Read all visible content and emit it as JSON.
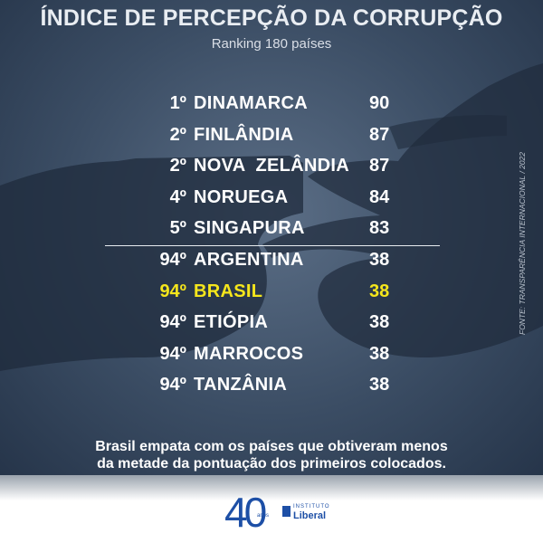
{
  "title": "ÍNDICE DE PERCEPÇÃO DA CORRUPÇÃO",
  "subtitle": "Ranking 180 países",
  "ranking": [
    {
      "rank": "1º",
      "country": "DINAMARCA",
      "score": "90",
      "highlight": false
    },
    {
      "rank": "2º",
      "country": "FINLÂNDIA",
      "score": "87",
      "highlight": false
    },
    {
      "rank": "2º",
      "country": "NOVA  ZELÂNDIA",
      "score": "87",
      "highlight": false
    },
    {
      "rank": "4º",
      "country": "NORUEGA",
      "score": "84",
      "highlight": false
    },
    {
      "rank": "5º",
      "country": "SINGAPURA",
      "score": "83",
      "highlight": false
    },
    {
      "rank": "94º",
      "country": "ARGENTINA",
      "score": "38",
      "highlight": false
    },
    {
      "rank": "94º",
      "country": "BRASIL",
      "score": "38",
      "highlight": true
    },
    {
      "rank": "94º",
      "country": "ETIÓPIA",
      "score": "38",
      "highlight": false
    },
    {
      "rank": "94º",
      "country": "MARROCOS",
      "score": "38",
      "highlight": false
    },
    {
      "rank": "94º",
      "country": "TANZÂNIA",
      "score": "38",
      "highlight": false
    }
  ],
  "source": "FONTE: TRANSPARÊNCIA INTERNACIONAL / 2022",
  "footnote_line1": "Brasil empata com os países que obtiveram menos",
  "footnote_line2": "da metade da pontuação dos primeiros colocados.",
  "logo": {
    "number": "40",
    "anos": "anos",
    "institute": "INSTITUTO",
    "name": "Liberal"
  },
  "colors": {
    "background": "#3b4d64",
    "text": "#ffffff",
    "highlight": "#f5e61c",
    "logo": "#1d4fa6"
  }
}
